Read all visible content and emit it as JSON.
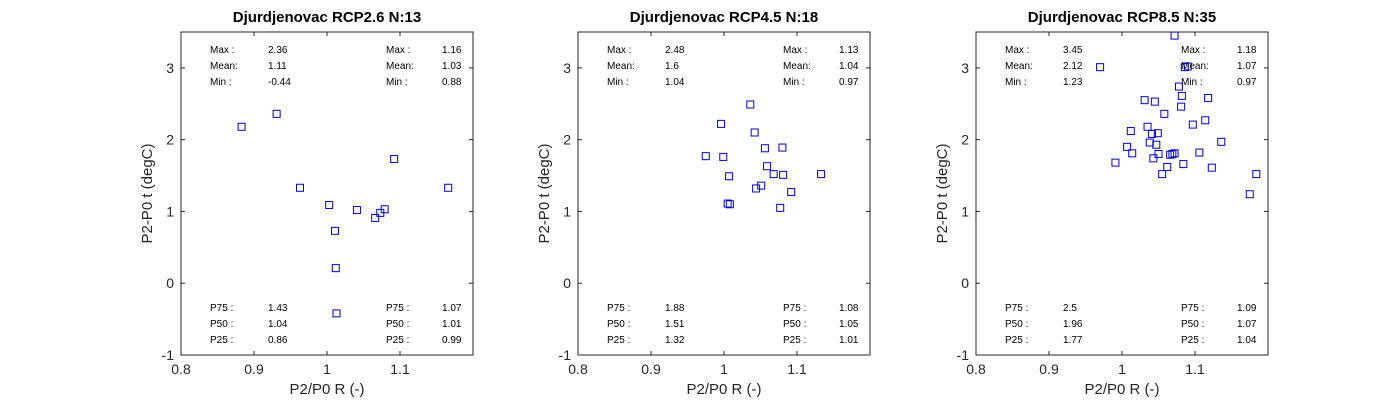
{
  "chart_data": [
    {
      "type": "scatter",
      "title": "Djurdjenovac RCP2.6 N:13",
      "xlabel": "P2/P0 R (-)",
      "ylabel": "P2-P0 t (degC)",
      "xlim": [
        0.8,
        1.2
      ],
      "ylim": [
        -1,
        3.5
      ],
      "xticks": [
        "0.8",
        "0.9",
        "1",
        "1.1"
      ],
      "xtick_values": [
        0.8,
        0.9,
        1.0,
        1.1
      ],
      "yticks": [
        "-1",
        "0",
        "1",
        "2",
        "3"
      ],
      "ytick_values": [
        -1,
        0,
        1,
        2,
        3
      ],
      "marker_color": "#0000cc",
      "points": [
        {
          "x": 0.883,
          "y": 2.18
        },
        {
          "x": 0.931,
          "y": 2.36
        },
        {
          "x": 0.963,
          "y": 1.33
        },
        {
          "x": 1.003,
          "y": 1.09
        },
        {
          "x": 1.011,
          "y": 0.73
        },
        {
          "x": 1.012,
          "y": 0.21
        },
        {
          "x": 1.013,
          "y": -0.42
        },
        {
          "x": 1.041,
          "y": 1.02
        },
        {
          "x": 1.066,
          "y": 0.91
        },
        {
          "x": 1.073,
          "y": 0.98
        },
        {
          "x": 1.079,
          "y": 1.03
        },
        {
          "x": 1.092,
          "y": 1.73
        },
        {
          "x": 1.166,
          "y": 1.33
        }
      ],
      "stats_top_left": [
        {
          "label": "Max :",
          "value": "2.36"
        },
        {
          "label": "Mean:",
          "value": "1.11"
        },
        {
          "label": "Min :",
          "value": "-0.44"
        }
      ],
      "stats_top_right": [
        {
          "label": "Max :",
          "value": "1.16"
        },
        {
          "label": "Mean:",
          "value": "1.03"
        },
        {
          "label": "Min :",
          "value": "0.88"
        }
      ],
      "stats_bottom_left": [
        {
          "label": "P75 :",
          "value": "1.43"
        },
        {
          "label": "P50 :",
          "value": "1.04"
        },
        {
          "label": "P25 :",
          "value": "0.86"
        }
      ],
      "stats_bottom_right": [
        {
          "label": "P75 :",
          "value": "1.07"
        },
        {
          "label": "P50 :",
          "value": "1.01"
        },
        {
          "label": "P25 :",
          "value": "0.99"
        }
      ]
    },
    {
      "type": "scatter",
      "title": "Djurdjenovac RCP4.5 N:18",
      "xlabel": "P2/P0 R (-)",
      "ylabel": "P2-P0 t (degC)",
      "xlim": [
        0.8,
        1.2
      ],
      "ylim": [
        -1,
        3.5
      ],
      "xticks": [
        "0.8",
        "0.9",
        "1",
        "1.1"
      ],
      "xtick_values": [
        0.8,
        0.9,
        1.0,
        1.1
      ],
      "yticks": [
        "-1",
        "0",
        "1",
        "2",
        "3"
      ],
      "ytick_values": [
        -1,
        0,
        1,
        2,
        3
      ],
      "marker_color": "#0000cc",
      "points": [
        {
          "x": 0.975,
          "y": 1.77
        },
        {
          "x": 0.996,
          "y": 2.22
        },
        {
          "x": 0.999,
          "y": 1.76
        },
        {
          "x": 1.005,
          "y": 1.11
        },
        {
          "x": 1.007,
          "y": 1.49
        },
        {
          "x": 1.008,
          "y": 1.1
        },
        {
          "x": 1.036,
          "y": 2.49
        },
        {
          "x": 1.042,
          "y": 2.1
        },
        {
          "x": 1.044,
          "y": 1.32
        },
        {
          "x": 1.051,
          "y": 1.36
        },
        {
          "x": 1.056,
          "y": 1.88
        },
        {
          "x": 1.059,
          "y": 1.63
        },
        {
          "x": 1.068,
          "y": 1.52
        },
        {
          "x": 1.077,
          "y": 1.05
        },
        {
          "x": 1.08,
          "y": 1.89
        },
        {
          "x": 1.081,
          "y": 1.51
        },
        {
          "x": 1.092,
          "y": 1.27
        },
        {
          "x": 1.133,
          "y": 1.52
        }
      ],
      "stats_top_left": [
        {
          "label": "Max :",
          "value": "2.48"
        },
        {
          "label": "Mean:",
          "value": "1.6"
        },
        {
          "label": "Min :",
          "value": "1.04"
        }
      ],
      "stats_top_right": [
        {
          "label": "Max :",
          "value": "1.13"
        },
        {
          "label": "Mean:",
          "value": "1.04"
        },
        {
          "label": "Min :",
          "value": "0.97"
        }
      ],
      "stats_bottom_left": [
        {
          "label": "P75 :",
          "value": "1.88"
        },
        {
          "label": "P50 :",
          "value": "1.51"
        },
        {
          "label": "P25 :",
          "value": "1.32"
        }
      ],
      "stats_bottom_right": [
        {
          "label": "P75 :",
          "value": "1.08"
        },
        {
          "label": "P50 :",
          "value": "1.05"
        },
        {
          "label": "P25 :",
          "value": "1.01"
        }
      ]
    },
    {
      "type": "scatter",
      "title": "Djurdjenovac RCP8.5 N:35",
      "xlabel": "P2/P0 R (-)",
      "ylabel": "P2-P0 t (degC)",
      "xlim": [
        0.8,
        1.2
      ],
      "ylim": [
        -1,
        3.5
      ],
      "xticks": [
        "0.8",
        "0.9",
        "1",
        "1.1"
      ],
      "xtick_values": [
        0.8,
        0.9,
        1.0,
        1.1
      ],
      "yticks": [
        "-1",
        "0",
        "1",
        "2",
        "3"
      ],
      "ytick_values": [
        -1,
        0,
        1,
        2,
        3
      ],
      "marker_color": "#0000cc",
      "points": [
        {
          "x": 0.97,
          "y": 3.01
        },
        {
          "x": 0.991,
          "y": 1.68
        },
        {
          "x": 1.007,
          "y": 1.9
        },
        {
          "x": 1.012,
          "y": 2.12
        },
        {
          "x": 1.014,
          "y": 1.81
        },
        {
          "x": 1.031,
          "y": 2.55
        },
        {
          "x": 1.035,
          "y": 2.18
        },
        {
          "x": 1.038,
          "y": 1.96
        },
        {
          "x": 1.041,
          "y": 2.08
        },
        {
          "x": 1.043,
          "y": 1.74
        },
        {
          "x": 1.045,
          "y": 2.53
        },
        {
          "x": 1.047,
          "y": 1.93
        },
        {
          "x": 1.049,
          "y": 2.09
        },
        {
          "x": 1.05,
          "y": 1.8
        },
        {
          "x": 1.055,
          "y": 1.52
        },
        {
          "x": 1.058,
          "y": 2.36
        },
        {
          "x": 1.062,
          "y": 1.62
        },
        {
          "x": 1.066,
          "y": 1.79
        },
        {
          "x": 1.069,
          "y": 1.8
        },
        {
          "x": 1.072,
          "y": 1.81
        },
        {
          "x": 1.072,
          "y": 3.45
        },
        {
          "x": 1.078,
          "y": 2.74
        },
        {
          "x": 1.081,
          "y": 2.46
        },
        {
          "x": 1.082,
          "y": 2.61
        },
        {
          "x": 1.084,
          "y": 1.66
        },
        {
          "x": 1.086,
          "y": 3.01
        },
        {
          "x": 1.09,
          "y": 3.02
        },
        {
          "x": 1.097,
          "y": 2.21
        },
        {
          "x": 1.106,
          "y": 1.82
        },
        {
          "x": 1.114,
          "y": 2.27
        },
        {
          "x": 1.118,
          "y": 2.58
        },
        {
          "x": 1.123,
          "y": 1.61
        },
        {
          "x": 1.136,
          "y": 1.97
        },
        {
          "x": 1.175,
          "y": 1.24
        },
        {
          "x": 1.184,
          "y": 1.52
        }
      ],
      "stats_top_left": [
        {
          "label": "Max :",
          "value": "3.45"
        },
        {
          "label": "Mean:",
          "value": "2.12"
        },
        {
          "label": "Min :",
          "value": "1.23"
        }
      ],
      "stats_top_right": [
        {
          "label": "Max :",
          "value": "1.18"
        },
        {
          "label": "Mean:",
          "value": "1.07"
        },
        {
          "label": "Min :",
          "value": "0.97"
        }
      ],
      "stats_bottom_left": [
        {
          "label": "P75 :",
          "value": "2.5"
        },
        {
          "label": "P50 :",
          "value": "1.96"
        },
        {
          "label": "P25 :",
          "value": "1.77"
        }
      ],
      "stats_bottom_right": [
        {
          "label": "P75 :",
          "value": "1.09"
        },
        {
          "label": "P50 :",
          "value": "1.07"
        },
        {
          "label": "P25 :",
          "value": "1.04"
        }
      ]
    }
  ]
}
